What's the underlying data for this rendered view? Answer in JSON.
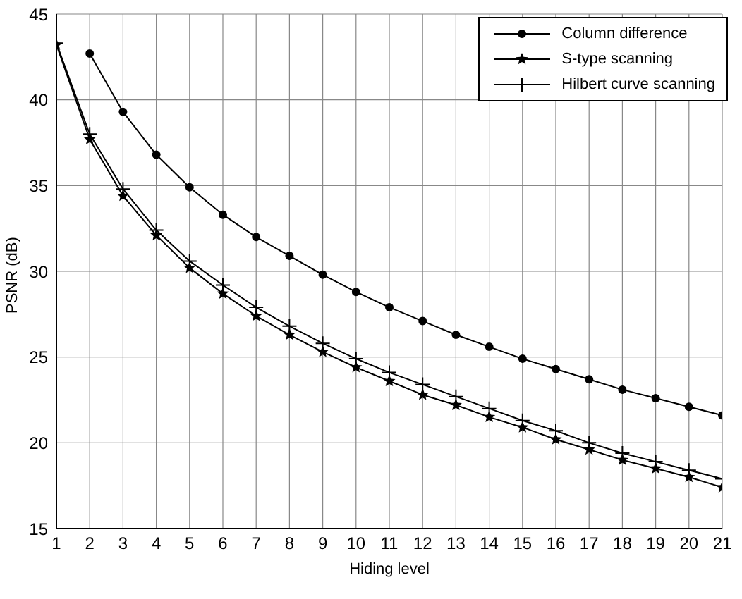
{
  "chart_data": {
    "type": "line",
    "xlabel": "Hiding level",
    "ylabel": "PSNR (dB)",
    "x": [
      1,
      2,
      3,
      4,
      5,
      6,
      7,
      8,
      9,
      10,
      11,
      12,
      13,
      14,
      15,
      16,
      17,
      18,
      19,
      20,
      21
    ],
    "series": [
      {
        "name": "Column difference",
        "color": "#000000",
        "marker": "circle",
        "values": [
          null,
          42.7,
          39.3,
          36.8,
          34.9,
          33.3,
          32.0,
          30.9,
          29.8,
          28.8,
          27.9,
          27.1,
          26.3,
          25.6,
          24.9,
          24.3,
          23.7,
          23.1,
          22.6,
          22.1,
          21.6
        ]
      },
      {
        "name": "S-type scanning",
        "color": "#000000",
        "marker": "star",
        "values": [
          43.2,
          37.7,
          34.4,
          32.1,
          30.2,
          28.7,
          27.4,
          26.3,
          25.3,
          24.4,
          23.6,
          22.8,
          22.2,
          21.5,
          20.9,
          20.2,
          19.6,
          19.0,
          18.5,
          18.0,
          17.4
        ]
      },
      {
        "name": "Hilbert curve scanning",
        "color": "#000000",
        "marker": "cross",
        "values": [
          43.3,
          38.0,
          34.8,
          32.4,
          30.6,
          29.2,
          27.9,
          26.8,
          25.8,
          24.9,
          24.1,
          23.4,
          22.7,
          22.0,
          21.3,
          20.7,
          20.0,
          19.4,
          18.9,
          18.4,
          17.9
        ]
      }
    ],
    "xlim": [
      1,
      21
    ],
    "xticks": [
      1,
      2,
      3,
      4,
      5,
      6,
      7,
      8,
      9,
      10,
      11,
      12,
      13,
      14,
      15,
      16,
      17,
      18,
      19,
      20,
      21
    ],
    "ylim": [
      15,
      45
    ],
    "yticks": [
      15,
      20,
      25,
      30,
      35,
      40,
      45
    ],
    "grid": true,
    "legend": "top right",
    "line_style": "solid"
  }
}
